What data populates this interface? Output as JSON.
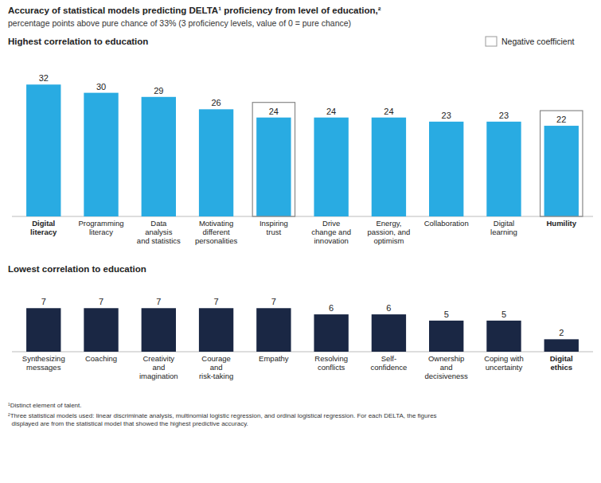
{
  "title": "Accuracy of statistical models predicting DELTA¹ proficiency from level of education,²",
  "subtitle": "percentage points above pure chance of 33% (3 proficiency levels, value of 0 = pure chance)",
  "annotations": [
    "¹Distinct element of talent.",
    "²Three statistical models used: linear discriminate analysis, multinomial logistic regression, and ordinal logistical regression. For each DELTA, the figures\n  displayed are from the statistical model that showed the highest predictive accuracy."
  ],
  "chart_data": [
    {
      "type": "bar",
      "title": "Highest correlation to education",
      "categories": [
        "Digital\nliteracy",
        "Programming\nliteracy",
        "Data\nanalysis\nand statistics",
        "Motivating\ndifferent\npersonalities",
        "Inspiring\ntrust",
        "Drive\nchange and\ninnovation",
        "Energy,\npassion, and\noptimism",
        "Collaboration",
        "Digital\nlearning",
        "Humility"
      ],
      "values": [
        32,
        30,
        29,
        26,
        24,
        24,
        24,
        23,
        23,
        22
      ],
      "color": "#29ABE2",
      "ylim": [
        0,
        39
      ],
      "data_labels": true,
      "tick_labels": "x",
      "grid": false,
      "legend": "upper right",
      "bold_categories": [
        "Digital\nliteracy",
        "Humility"
      ],
      "outlined": {
        "name": "Negative coefficient",
        "categories": [
          "Inspiring\ntrust",
          "Humility"
        ]
      }
    },
    {
      "type": "bar",
      "title": "Lowest correlation to education",
      "categories": [
        "Synthesizing\nmessages",
        "Coaching",
        "Creativity\nand\nimagination",
        "Courage\nand\nrisk-taking",
        "Empathy",
        "Resolving\nconflicts",
        "Self-\nconfidence",
        "Ownership\nand\ndecisiveness",
        "Coping with\nuncertainty",
        "Digital\nethics"
      ],
      "values": [
        7,
        7,
        7,
        7,
        7,
        6,
        6,
        5,
        5,
        2
      ],
      "color": "#1A2744",
      "ylim": [
        0,
        11
      ],
      "data_labels": true,
      "tick_labels": "x",
      "grid": false,
      "bold_categories": [
        "Digital\nethics"
      ]
    }
  ]
}
